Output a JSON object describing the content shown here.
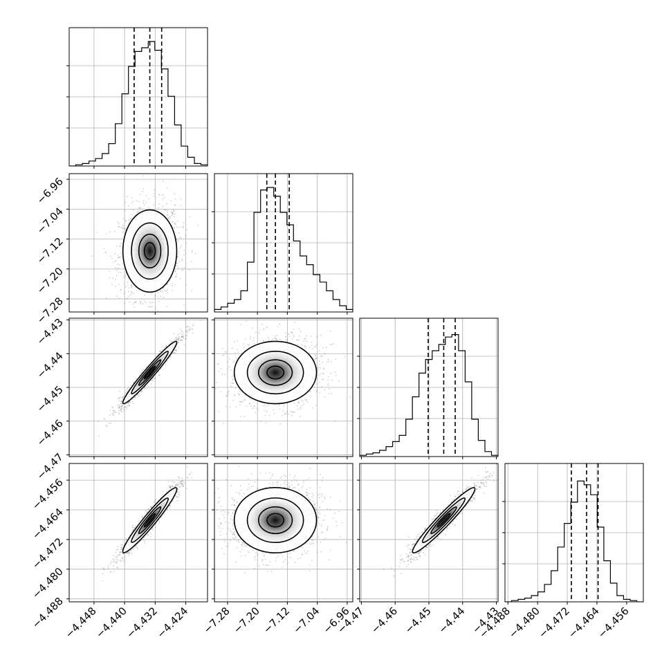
{
  "chart_data": {
    "type": "corner",
    "grid": true,
    "parameters": [
      {
        "range": [
          -4.4545,
          -4.4183
        ],
        "ticks": [
          -4.448,
          -4.44,
          -4.432,
          -4.424
        ],
        "tick_labels": [
          "−4.448",
          "−4.440",
          "−4.432",
          "−4.424"
        ],
        "quantiles": [
          -4.4375,
          -4.4334,
          -4.4303
        ],
        "histogram": [
          0,
          0.01,
          0.02,
          0.04,
          0.06,
          0.1,
          0.18,
          0.34,
          0.58,
          0.8,
          0.92,
          0.95,
          1.0,
          0.93,
          0.78,
          0.56,
          0.33,
          0.16,
          0.07,
          0.02,
          0.01
        ]
      },
      {
        "range": [
          -7.315,
          -6.945
        ],
        "ticks": [
          -7.28,
          -7.2,
          -7.12,
          -7.04,
          -6.96
        ],
        "tick_labels": [
          "−7.28",
          "−7.20",
          "−7.12",
          "−7.04",
          "−6.96"
        ],
        "quantiles": [
          -7.175,
          -7.152,
          -7.115
        ],
        "histogram": [
          0.02,
          0.04,
          0.07,
          0.1,
          0.17,
          0.4,
          0.8,
          0.98,
          1.0,
          0.93,
          0.8,
          0.7,
          0.57,
          0.45,
          0.38,
          0.3,
          0.24,
          0.17,
          0.1,
          0.05,
          0.02
        ]
      },
      {
        "range": [
          -4.4705,
          -4.4295
        ],
        "ticks": [
          -4.47,
          -4.46,
          -4.45,
          -4.44,
          -4.43
        ],
        "tick_labels": [
          "−4.47",
          "−4.46",
          "−4.45",
          "−4.44",
          "−4.43"
        ],
        "quantiles": [
          -4.4502,
          -4.4456,
          -4.4422
        ],
        "histogram": [
          0.01,
          0.02,
          0.03,
          0.05,
          0.08,
          0.12,
          0.17,
          0.3,
          0.48,
          0.67,
          0.78,
          0.85,
          0.9,
          0.96,
          0.98,
          0.85,
          0.6,
          0.3,
          0.13,
          0.04,
          0.01
        ]
      },
      {
        "range": [
          -4.4888,
          -4.4515
        ],
        "ticks": [
          -4.488,
          -4.48,
          -4.472,
          -4.464,
          -4.456
        ],
        "tick_labels": [
          "−4.488",
          "−4.480",
          "−4.472",
          "−4.464",
          "−4.456"
        ],
        "quantiles": [
          -4.4709,
          -4.4668,
          -4.4637
        ],
        "histogram": [
          0,
          0.01,
          0.02,
          0.03,
          0.05,
          0.08,
          0.14,
          0.25,
          0.44,
          0.63,
          0.8,
          0.97,
          0.94,
          0.86,
          0.6,
          0.33,
          0.15,
          0.05,
          0.02,
          0.01,
          0.0
        ]
      }
    ]
  }
}
